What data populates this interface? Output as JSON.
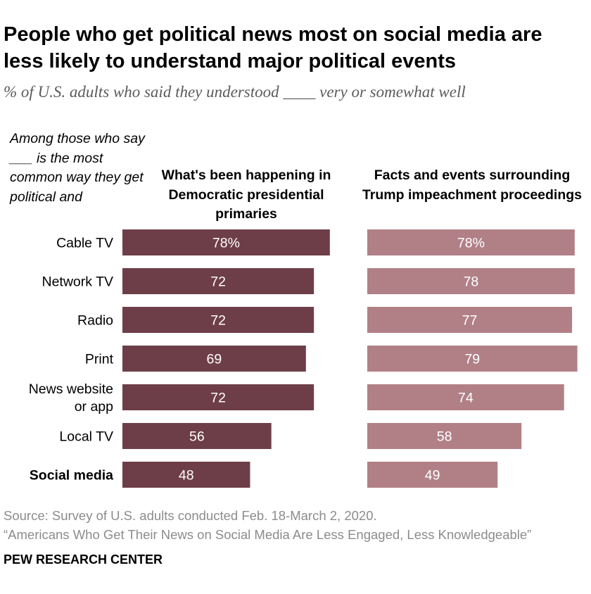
{
  "title": "People who get political news most on social media are less likely to understand major political events",
  "subtitle": "% of U.S. adults who said they understood ____ very or somewhat well",
  "group_note": "Among those who say ___ is the most common way they get political and",
  "source": "Source: Survey of U.S. adults conducted Feb. 18-March 2, 2020.",
  "report": "“Americans Who Get Their News on Social Media Are Less Engaged, Less Knowledgeable”",
  "organization": "PEW RESEARCH CENTER",
  "chart_data": {
    "type": "bar",
    "orientation": "horizontal",
    "categories": [
      "Cable TV",
      "Network TV",
      "Radio",
      "Print",
      "News website\nor app",
      "Local TV",
      "Social media"
    ],
    "highlighted_category": "Social media",
    "series": [
      {
        "name": "What's been happening in Democratic presidential primaries",
        "values": [
          78,
          72,
          72,
          69,
          72,
          56,
          48
        ],
        "labels": [
          "78%",
          "72",
          "72",
          "69",
          "72",
          "56",
          "48"
        ],
        "color": "#6e3e48"
      },
      {
        "name": "Facts and events surrounding Trump impeachment proceedings",
        "values": [
          78,
          78,
          77,
          79,
          74,
          58,
          49
        ],
        "labels": [
          "78%",
          "78",
          "77",
          "79",
          "74",
          "58",
          "49"
        ],
        "color": "#b18087"
      }
    ],
    "xlim": [
      0,
      100
    ],
    "grid": false,
    "legend": "column headers"
  }
}
